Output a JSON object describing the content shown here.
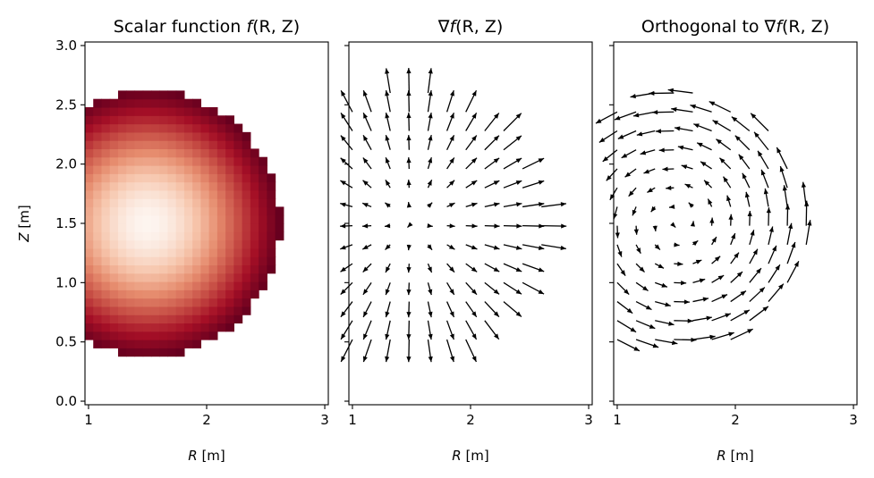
{
  "chart_data": [
    {
      "type": "heatmap",
      "title": "Scalar function f(R, Z)",
      "title_parts": {
        "pre": "Scalar function ",
        "f": "f",
        "args": "(R, Z)"
      },
      "xlabel": "R [m]",
      "xlabel_parts": {
        "var": "R",
        "unit": " [m]"
      },
      "ylabel": "Z [m]",
      "ylabel_parts": {
        "var": "Z",
        "unit": " [m]"
      },
      "xlim": [
        0.97,
        3.03
      ],
      "ylim": [
        -0.03,
        3.03
      ],
      "xticks": [
        "1",
        "2",
        "3"
      ],
      "yticks": [
        "0.0",
        "0.5",
        "1.0",
        "1.5",
        "2.0",
        "2.5",
        "3.0"
      ],
      "colormap": "RdBu",
      "colors": {
        "center": "#fdf5f0",
        "edge": "#67001f"
      },
      "function": "exp(-((R-1.5)^2 + (Z-1.5)^2))",
      "center": [
        1.5,
        1.5
      ],
      "grid_step": 0.07,
      "domain": {
        "r_min": 0.97,
        "r_max": 2.63,
        "z_min": 0.38,
        "z_max": 2.62,
        "radius": 1.12,
        "shape": "disk clipped at R_min"
      }
    },
    {
      "type": "quiver",
      "title": "∇f(R, Z)",
      "title_parts": {
        "pre": "∇",
        "f": "f",
        "args": "(R, Z)"
      },
      "xlabel": "R [m]",
      "xlabel_parts": {
        "var": "R",
        "unit": " [m]"
      },
      "xlim": [
        0.97,
        3.03
      ],
      "ylim": [
        -0.03,
        3.03
      ],
      "xticks": [
        "1",
        "2",
        "3"
      ],
      "field": "gradient",
      "center": [
        1.5,
        1.5
      ],
      "grid_step": 0.16
    },
    {
      "type": "quiver",
      "title": "Orthogonal to ∇f(R, Z)",
      "title_parts": {
        "pre": "Orthogonal to ∇",
        "f": "f",
        "args": "(R, Z)"
      },
      "xlabel": "R [m]",
      "xlabel_parts": {
        "var": "R",
        "unit": " [m]"
      },
      "xlim": [
        0.97,
        3.03
      ],
      "ylim": [
        -0.03,
        3.03
      ],
      "xticks": [
        "1",
        "2",
        "3"
      ],
      "field": "rotated gradient (counter-clockwise)",
      "center": [
        1.5,
        1.5
      ],
      "grid_step": 0.16
    }
  ],
  "colors": {
    "arrow": "#000000",
    "axes": "#000000",
    "background": "#ffffff"
  }
}
